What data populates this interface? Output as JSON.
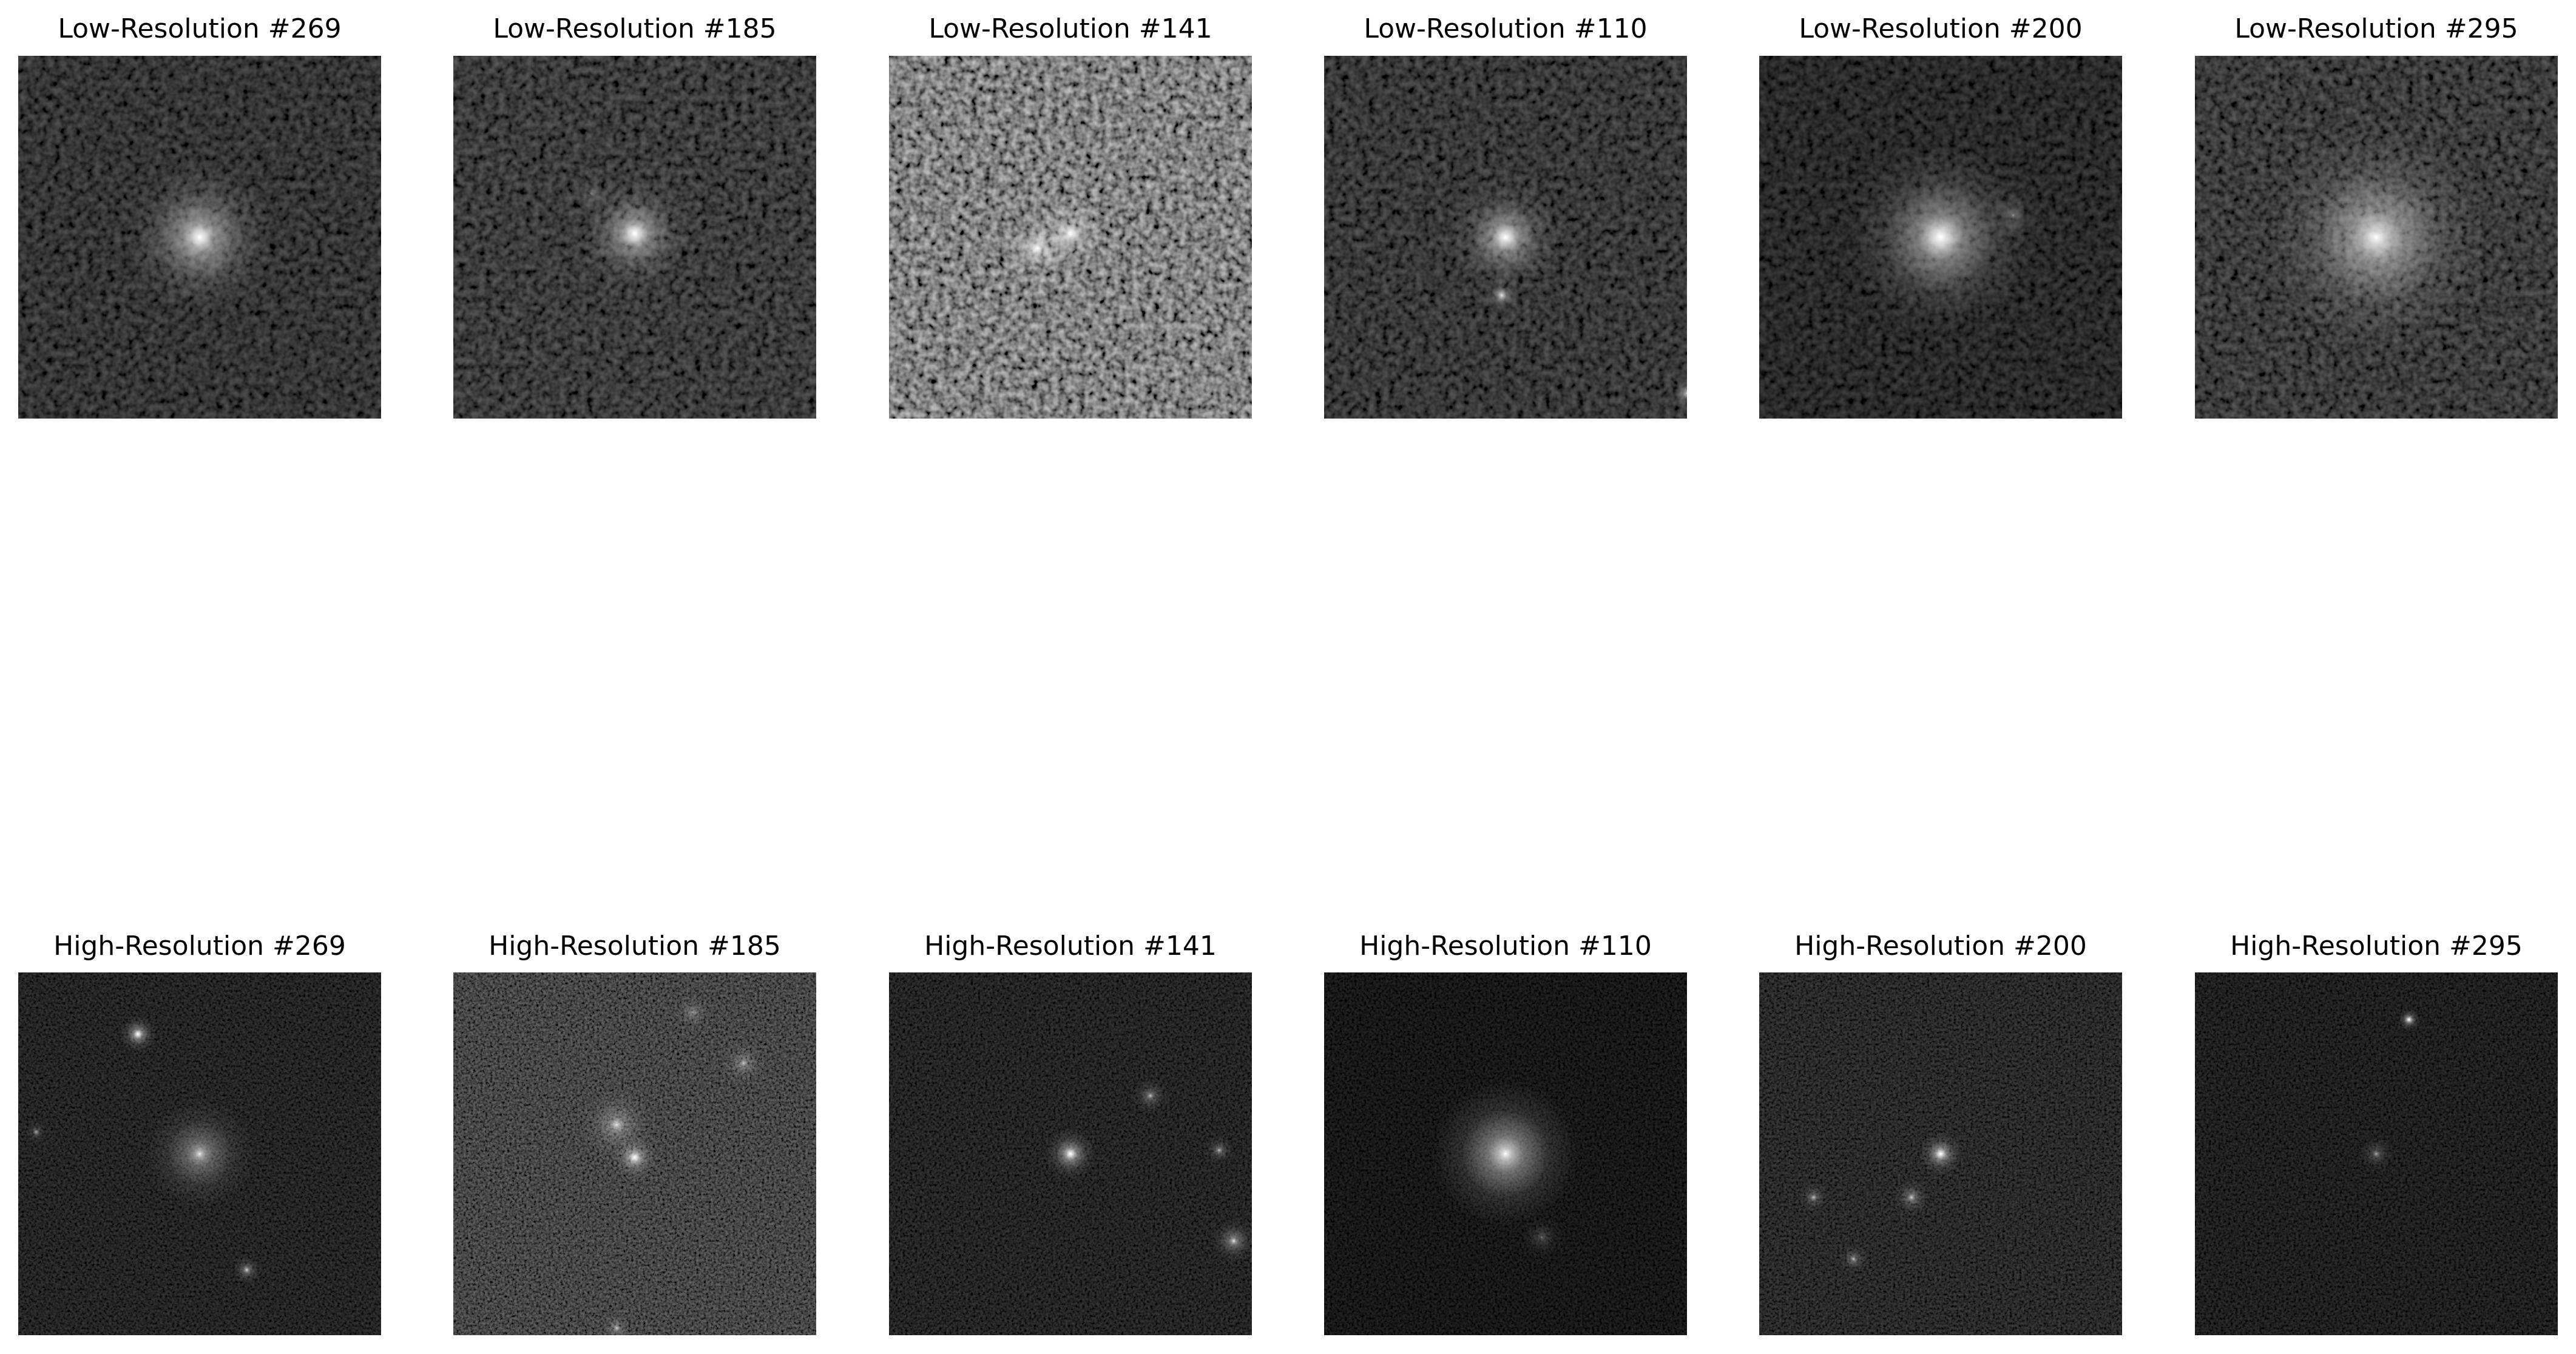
{
  "rows": [
    {
      "panels": [
        {
          "title": "Low-Resolution #269"
        },
        {
          "title": "Low-Resolution #185"
        },
        {
          "title": "Low-Resolution #141"
        },
        {
          "title": "Low-Resolution #110"
        },
        {
          "title": "Low-Resolution #200"
        },
        {
          "title": "Low-Resolution #295"
        }
      ]
    },
    {
      "panels": [
        {
          "title": "High-Resolution #269"
        },
        {
          "title": "High-Resolution #185"
        },
        {
          "title": "High-Resolution #141"
        },
        {
          "title": "High-Resolution #110"
        },
        {
          "title": "High-Resolution #200"
        },
        {
          "title": "High-Resolution #295"
        }
      ]
    }
  ]
}
